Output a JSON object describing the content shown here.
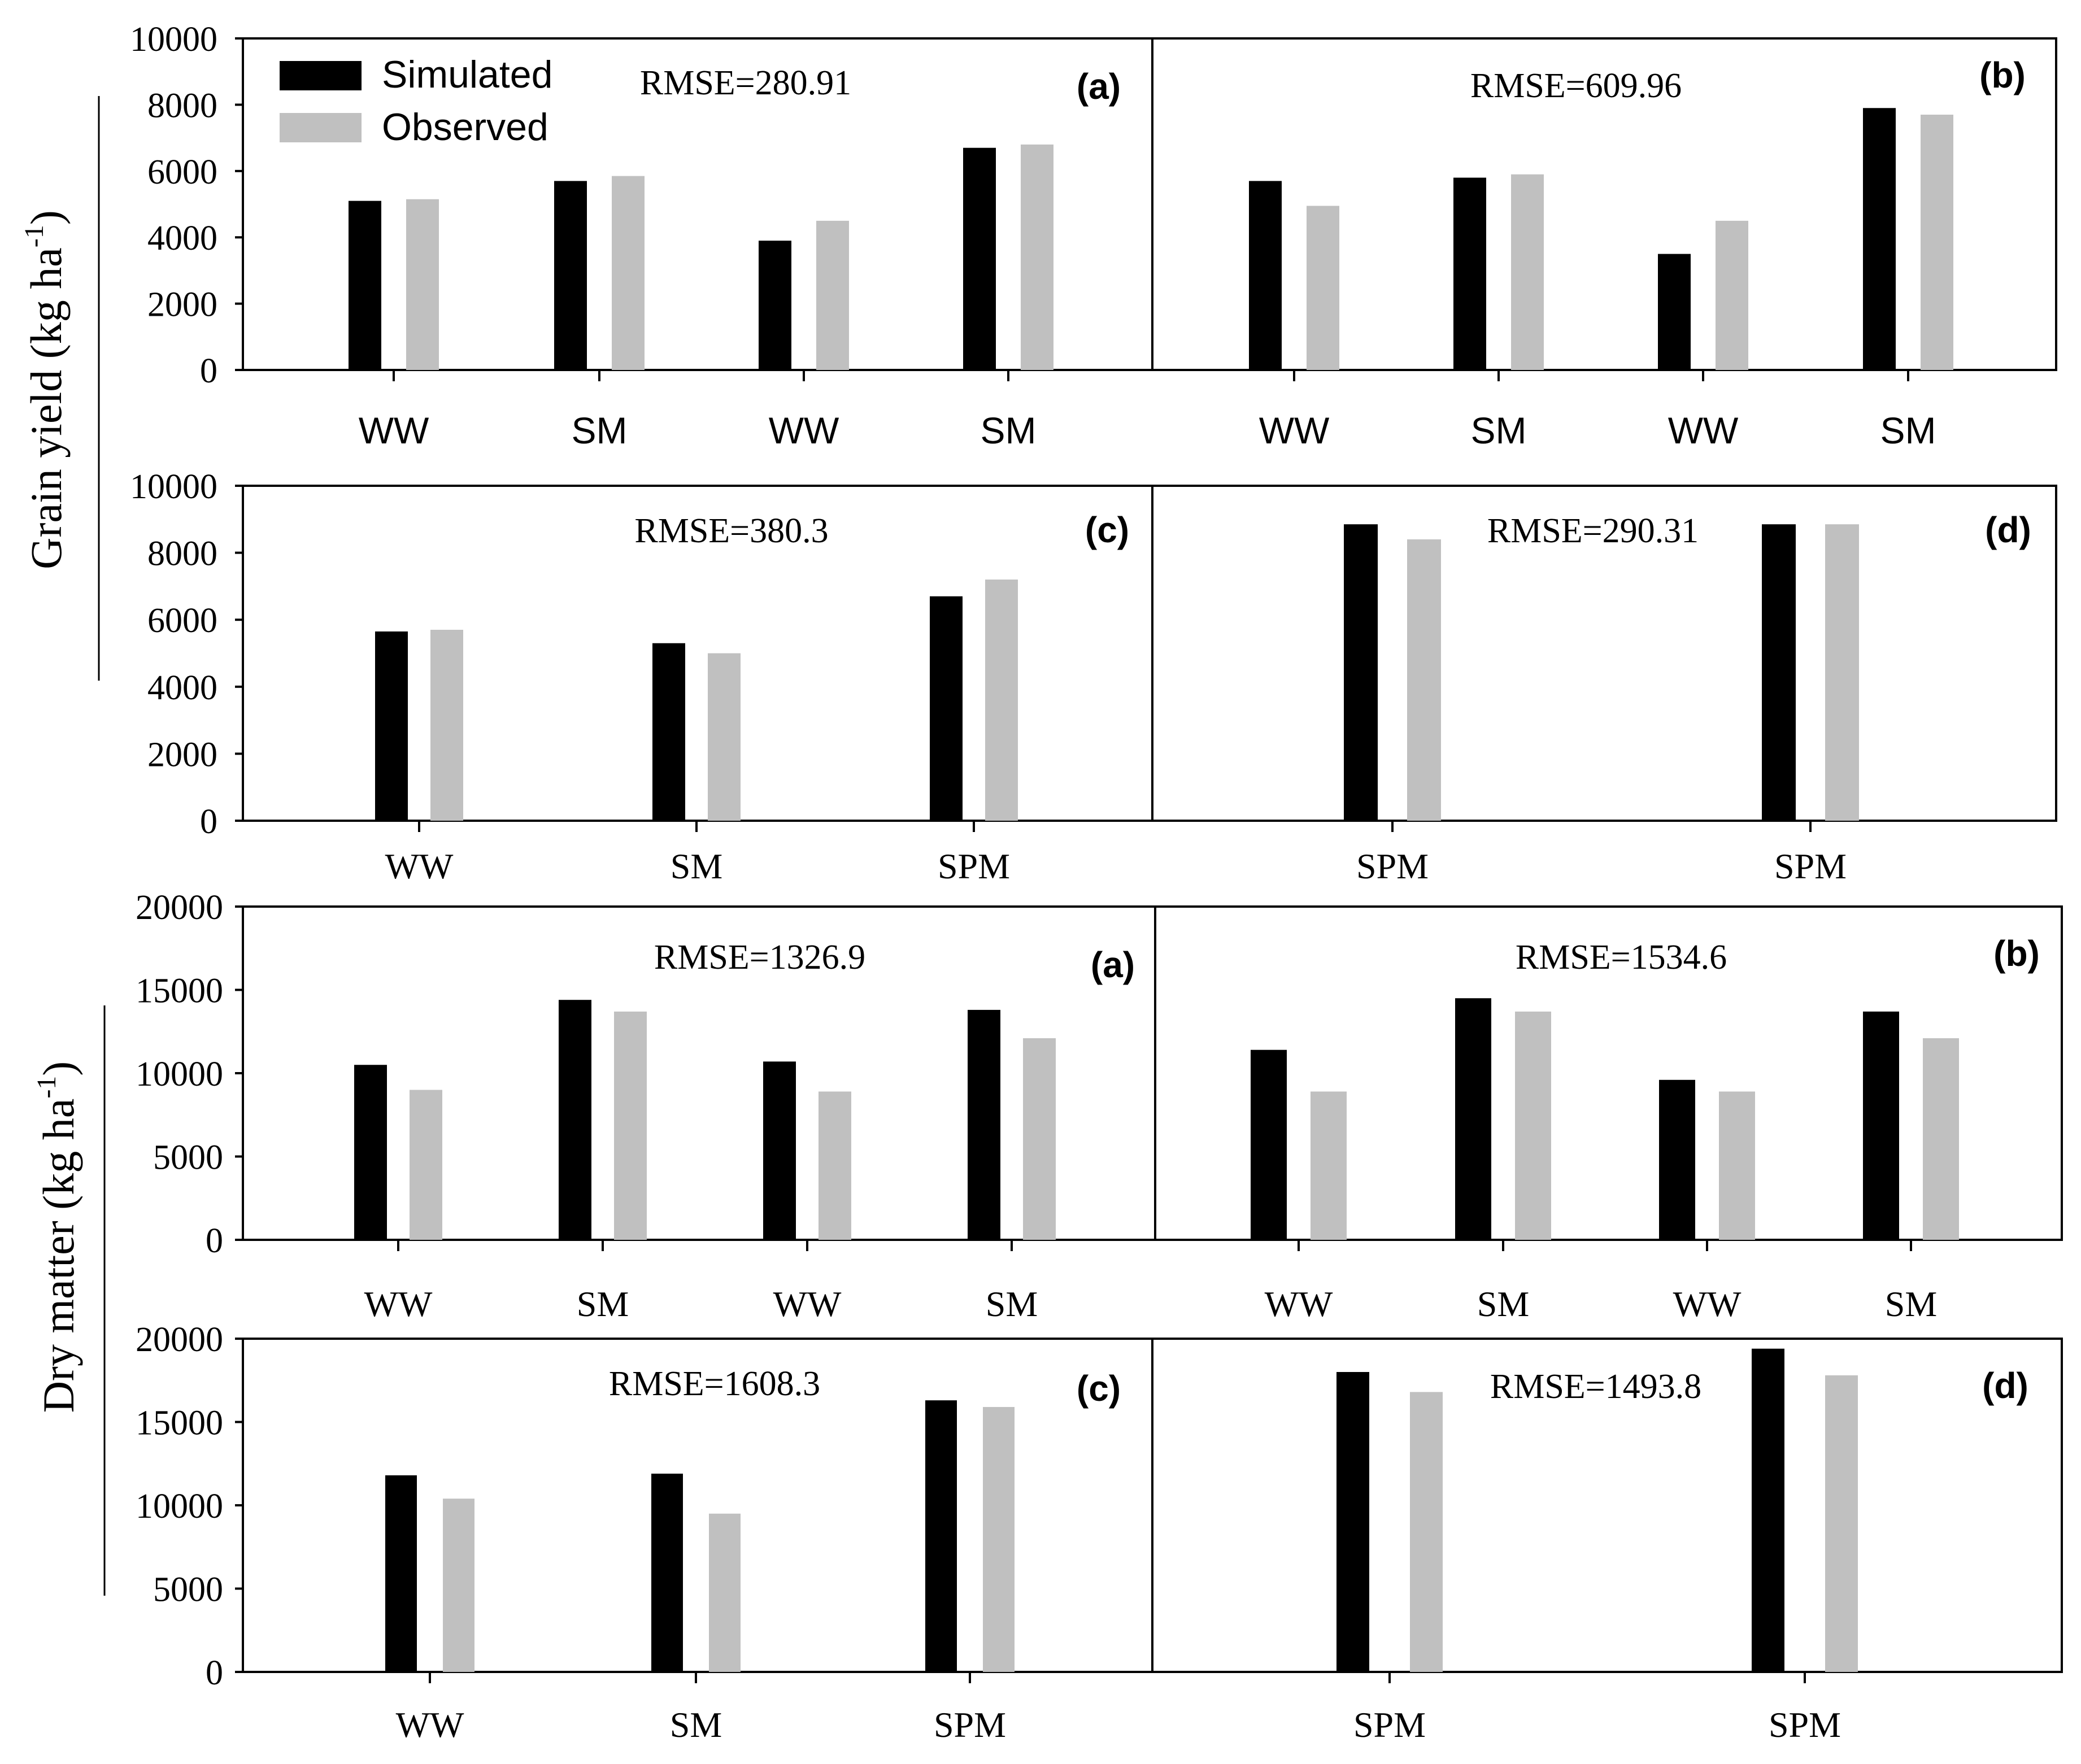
{
  "colors": {
    "simulated": "#000000",
    "observed": "#c0c0c0",
    "axis": "#000000"
  },
  "legend": {
    "simulated_label": "Simulated",
    "observed_label": "Observed"
  },
  "y_titles": {
    "grain_yield": {
      "main": "Grain yield (kg ha",
      "sup": "-1",
      "close": ")"
    },
    "dry_matter": {
      "main": "Dry matter (kg ha",
      "sup": "-1",
      "close": ")"
    }
  },
  "chart_data": [
    {
      "id": "grain-a",
      "type": "bar",
      "panel_label": "(a)",
      "rmse_label": "RMSE=280.91",
      "categories": [
        "WW",
        "SM",
        "WW",
        "SM"
      ],
      "series": [
        {
          "name": "Simulated",
          "values": [
            5100,
            5700,
            3900,
            6700
          ]
        },
        {
          "name": "Observed",
          "values": [
            5150,
            5850,
            4500,
            6800
          ]
        }
      ],
      "ylim": [
        0,
        10000
      ],
      "yticks": [
        0,
        2000,
        4000,
        6000,
        8000,
        10000
      ],
      "ylabel": "Grain yield (kg ha-1)"
    },
    {
      "id": "grain-b",
      "type": "bar",
      "panel_label": "(b)",
      "rmse_label": "RMSE=609.96",
      "categories": [
        "WW",
        "SM",
        "WW",
        "SM"
      ],
      "series": [
        {
          "name": "Simulated",
          "values": [
            5700,
            5800,
            3500,
            7900
          ]
        },
        {
          "name": "Observed",
          "values": [
            4950,
            5900,
            4500,
            7700
          ]
        }
      ],
      "ylim": [
        0,
        10000
      ],
      "yticks": [],
      "ylabel": "Grain yield (kg ha-1)"
    },
    {
      "id": "grain-c",
      "type": "bar",
      "panel_label": "(c)",
      "rmse_label": "RMSE=380.3",
      "categories": [
        "WW",
        "SM",
        "SPM"
      ],
      "series": [
        {
          "name": "Simulated",
          "values": [
            5650,
            5300,
            6700
          ]
        },
        {
          "name": "Observed",
          "values": [
            5700,
            5000,
            7200
          ]
        }
      ],
      "ylim": [
        0,
        10000
      ],
      "yticks": [
        0,
        2000,
        4000,
        6000,
        8000,
        10000
      ],
      "ylabel": "Grain yield (kg ha-1)"
    },
    {
      "id": "grain-d",
      "type": "bar",
      "panel_label": "(d)",
      "rmse_label": "RMSE=290.31",
      "categories": [
        "SPM",
        "SPM"
      ],
      "series": [
        {
          "name": "Simulated",
          "values": [
            8850,
            8850
          ]
        },
        {
          "name": "Observed",
          "values": [
            8400,
            8850
          ]
        }
      ],
      "ylim": [
        0,
        10000
      ],
      "yticks": [],
      "ylabel": "Grain yield (kg ha-1)"
    },
    {
      "id": "dry-a",
      "type": "bar",
      "panel_label": "(a)",
      "rmse_label": "RMSE=1326.9",
      "categories": [
        "WW",
        "SM",
        "WW",
        "SM"
      ],
      "series": [
        {
          "name": "Simulated",
          "values": [
            10500,
            14400,
            10700,
            13800
          ]
        },
        {
          "name": "Observed",
          "values": [
            9000,
            13700,
            8900,
            12100
          ]
        }
      ],
      "ylim": [
        0,
        20000
      ],
      "yticks": [
        0,
        5000,
        10000,
        15000,
        20000
      ],
      "ylabel": "Dry matter (kg ha-1)"
    },
    {
      "id": "dry-b",
      "type": "bar",
      "panel_label": "(b)",
      "rmse_label": "RMSE=1534.6",
      "categories": [
        "WW",
        "SM",
        "WW",
        "SM"
      ],
      "series": [
        {
          "name": "Simulated",
          "values": [
            11400,
            14500,
            9600,
            13700
          ]
        },
        {
          "name": "Observed",
          "values": [
            8900,
            13700,
            8900,
            12100
          ]
        }
      ],
      "ylim": [
        0,
        20000
      ],
      "yticks": [],
      "ylabel": "Dry matter (kg ha-1)"
    },
    {
      "id": "dry-c",
      "type": "bar",
      "panel_label": "(c)",
      "rmse_label": "RMSE=1608.3",
      "categories": [
        "WW",
        "SM",
        "SPM"
      ],
      "series": [
        {
          "name": "Simulated",
          "values": [
            11800,
            11900,
            16300
          ]
        },
        {
          "name": "Observed",
          "values": [
            10400,
            9500,
            15900
          ]
        }
      ],
      "ylim": [
        0,
        20000
      ],
      "yticks": [
        0,
        5000,
        10000,
        15000,
        20000
      ],
      "ylabel": "Dry matter (kg ha-1)"
    },
    {
      "id": "dry-d",
      "type": "bar",
      "panel_label": "(d)",
      "rmse_label": "RMSE=1493.8",
      "categories": [
        "SPM",
        "SPM"
      ],
      "series": [
        {
          "name": "Simulated",
          "values": [
            18000,
            19400
          ]
        },
        {
          "name": "Observed",
          "values": [
            16800,
            17800
          ]
        }
      ],
      "ylim": [
        0,
        20000
      ],
      "yticks": [],
      "ylabel": "Dry matter (kg ha-1)"
    }
  ]
}
